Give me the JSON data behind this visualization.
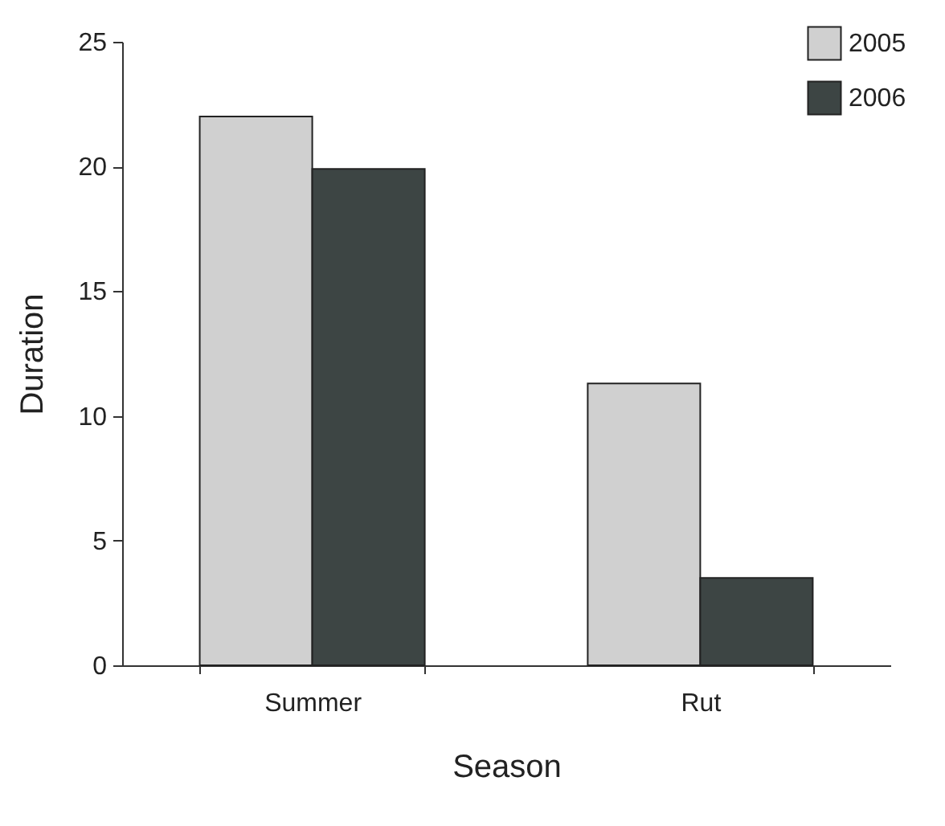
{
  "chart_data": {
    "type": "bar",
    "xlabel": "Season",
    "ylabel": "Duration",
    "categories": [
      "Summer",
      "Rut"
    ],
    "series": [
      {
        "name": "2005",
        "color": "#d0d0d0",
        "values": [
          22,
          11.3
        ]
      },
      {
        "name": "2006",
        "color": "#3d4544",
        "values": [
          19.9,
          3.5
        ]
      }
    ],
    "ylim": [
      0,
      25
    ],
    "yticks": [
      0,
      5,
      10,
      15,
      20,
      25
    ],
    "grid": false,
    "legend": "top right"
  }
}
